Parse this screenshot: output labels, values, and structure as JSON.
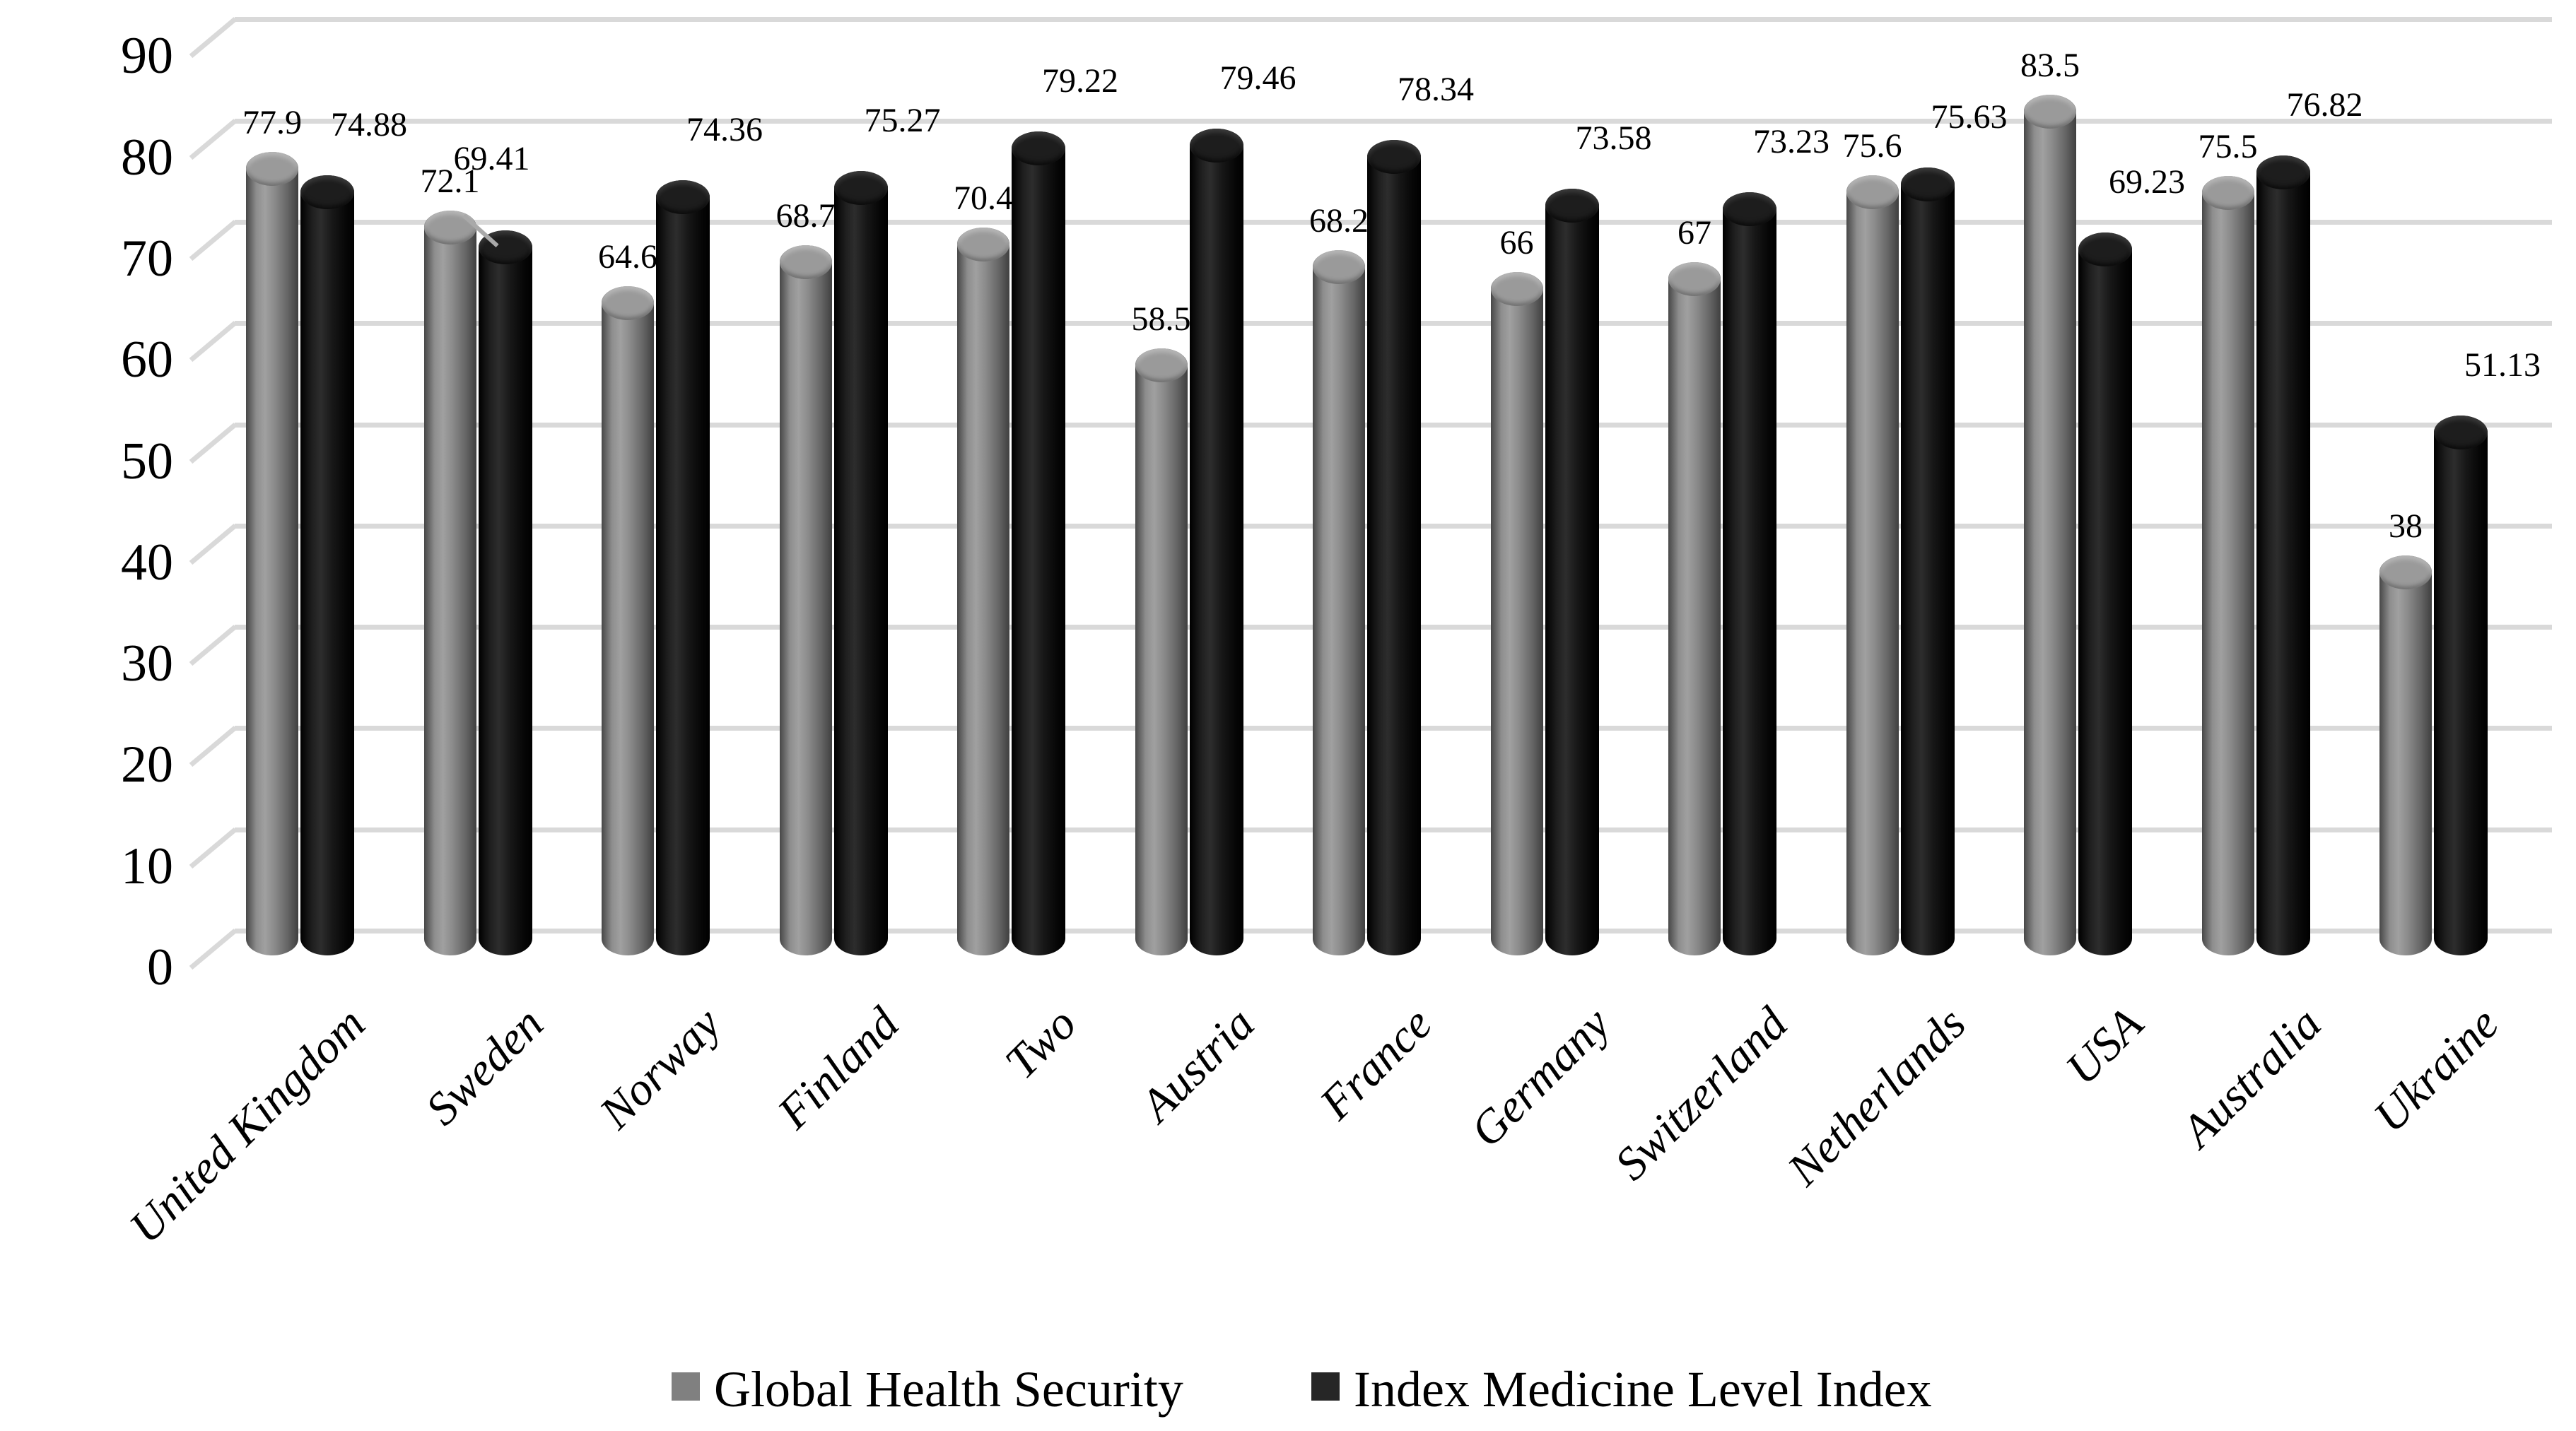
{
  "chart_data": {
    "type": "bar",
    "variant": "3d-cylinder",
    "title": "",
    "xlabel": "",
    "ylabel": "",
    "categories": [
      "United Kingdom",
      "Sweden",
      "Norway",
      "Finland",
      "Two",
      "Austria",
      "France",
      "Germany",
      "Switzerland",
      "Netherlands",
      "USA",
      "Australia",
      "Ukraine"
    ],
    "series": [
      {
        "name": "Global Health Security",
        "color": "#808080",
        "values": [
          77.9,
          72.1,
          64.6,
          68.7,
          70.4,
          58.5,
          68.2,
          66,
          67,
          75.6,
          83.5,
          75.5,
          38
        ]
      },
      {
        "name": "Index Medicine Level Index",
        "color": "#1a1a1a",
        "values": [
          74.88,
          69.41,
          74.36,
          75.27,
          79.22,
          79.46,
          78.34,
          73.58,
          73.23,
          75.63,
          69.23,
          76.82,
          51.13
        ]
      }
    ],
    "y_axis": {
      "min": 0,
      "max": 90,
      "step": 10,
      "tick_labels": [
        "0",
        "10",
        "20",
        "30",
        "40",
        "50",
        "60",
        "70",
        "80",
        "90"
      ]
    },
    "grid": true,
    "legend_position": "bottom",
    "gridline_color": "#d9d9d9",
    "background_color": "#ffffff"
  }
}
